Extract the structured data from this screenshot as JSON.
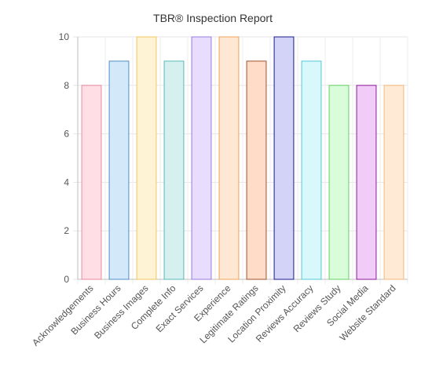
{
  "chart_data": {
    "type": "bar",
    "title": "TBR® Inspection Report",
    "xlabel": "",
    "ylabel": "",
    "ylim": [
      0,
      10
    ],
    "yticks": [
      0,
      2,
      4,
      6,
      8,
      10
    ],
    "grid": true,
    "legend": "none",
    "categories": [
      "Acknowledgements",
      "Business Hours",
      "Business Images",
      "Complete Info",
      "Exact Services",
      "Experience",
      "Legitimate Ratings",
      "Location Proximity",
      "Reviews Accuracy",
      "Reviews Study",
      "Social Media",
      "Website Standard"
    ],
    "values": [
      8,
      9,
      10,
      9,
      10,
      10,
      9,
      10,
      9,
      8,
      8,
      8
    ],
    "fill_colors": [
      "#ffdfe5",
      "#d3e8f8",
      "#fff3d6",
      "#d6f0f0",
      "#e8ddff",
      "#ffe8d3",
      "#ffdcc8",
      "#d3d3f8",
      "#d9f8fb",
      "#d9fcd9",
      "#f1ccf8",
      "#ffead6"
    ],
    "border_colors": [
      "#e88a9e",
      "#4f8fc8",
      "#f2c55c",
      "#5ab8b8",
      "#9a7be0",
      "#f0a458",
      "#a0522d",
      "#1a1a8c",
      "#54c8d8",
      "#66d066",
      "#8a1a9a",
      "#f5b878"
    ]
  }
}
